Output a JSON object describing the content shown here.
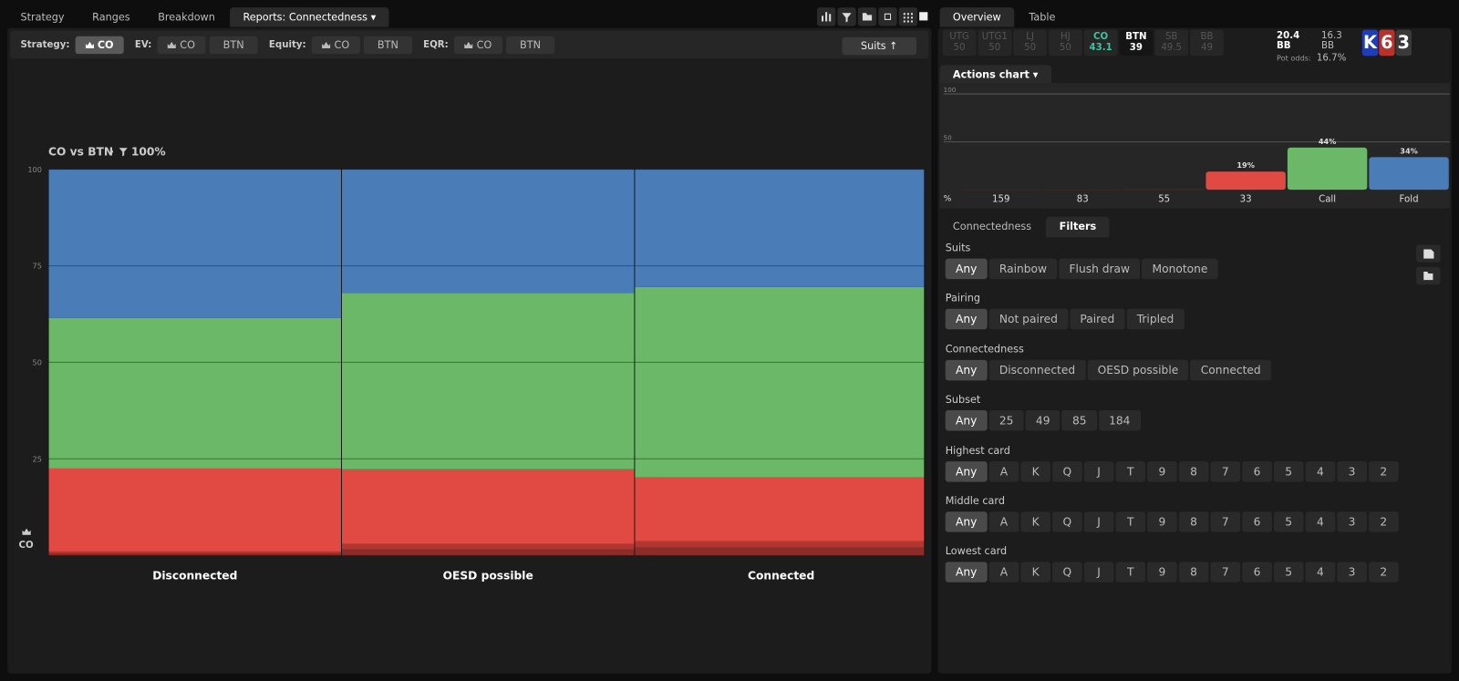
{
  "top_tabs": [
    "Strategy",
    "Ranges",
    "Breakdown",
    "Reports: Connectedness"
  ],
  "toolbar": {
    "groups": [
      {
        "label": "Strategy:",
        "buttons": [
          "CO"
        ]
      },
      {
        "label": "EV:",
        "buttons": [
          "CO",
          "BTN"
        ]
      },
      {
        "label": "Equity:",
        "buttons": [
          "CO",
          "BTN"
        ]
      },
      {
        "label": "EQR:",
        "buttons": [
          "CO",
          "BTN"
        ]
      }
    ],
    "sort_button": "Suits ↑"
  },
  "side_tabs": [
    "Overview",
    "Table"
  ],
  "positions": [
    {
      "name": "UTG",
      "value": 50
    },
    {
      "name": "UTG1",
      "value": 50
    },
    {
      "name": "LJ",
      "value": 50
    },
    {
      "name": "HJ",
      "value": 50
    },
    {
      "name": "CO",
      "value": 43.1
    },
    {
      "name": "BTN",
      "value": 39
    },
    {
      "name": "SB",
      "value": 49.5
    },
    {
      "name": "BB",
      "value": 49
    }
  ],
  "stacks": {
    "effective": "20.4 BB",
    "pot": "16.3 BB",
    "pot_odds_label": "Pot odds:",
    "pot_odds": "16.7%"
  },
  "board": [
    "K",
    "6",
    "3"
  ],
  "chart_data": [
    {
      "type": "bar",
      "stacked": true,
      "title": "CO vs BTN",
      "filter": "100%",
      "y_label": "CO",
      "categories": [
        "Disconnected",
        "OESD possible",
        "Connected"
      ],
      "series": [
        {
          "color": "#8a2c27",
          "values": [
            0.5,
            1.5,
            2
          ]
        },
        {
          "color": "#b0362f",
          "values": [
            0.5,
            1.5,
            1.7
          ]
        },
        {
          "color": "#e04a43",
          "values": [
            21.5,
            19.3,
            16.5
          ]
        },
        {
          "color": "#6bb868",
          "values": [
            39,
            45.7,
            49.3
          ]
        },
        {
          "color": "#4a7cb8",
          "values": [
            38.5,
            32,
            30.5
          ]
        }
      ],
      "ylim": [
        0,
        100
      ],
      "yticks": [
        25,
        50,
        75,
        100
      ],
      "grid": true
    },
    {
      "type": "bar",
      "title": "Actions chart",
      "y_label": "%",
      "categories": [
        "159",
        "83",
        "55",
        "33",
        "Call",
        "Fold"
      ],
      "values": [
        0.3,
        0.2,
        0.3,
        19,
        44,
        34
      ],
      "value_labels": [
        null,
        null,
        null,
        "19%",
        "44%",
        "34%"
      ],
      "colors": [
        "#8a2c27",
        "#9e312b",
        "#b0362f",
        "#e04a43",
        "#6bb868",
        "#4a7cb8"
      ],
      "ylim": [
        0,
        100
      ],
      "yticks": [
        50,
        100
      ],
      "grid": true
    }
  ],
  "filter_tabs": [
    "Connectedness",
    "Filters"
  ],
  "filters": [
    {
      "label": "Suits",
      "options": [
        "Any",
        "Rainbow",
        "Flush draw",
        "Monotone"
      ]
    },
    {
      "label": "Pairing",
      "options": [
        "Any",
        "Not paired",
        "Paired",
        "Tripled"
      ]
    },
    {
      "label": "Connectedness",
      "options": [
        "Any",
        "Disconnected",
        "OESD possible",
        "Connected"
      ]
    },
    {
      "label": "Subset",
      "options": [
        "Any",
        "25",
        "49",
        "85",
        "184"
      ]
    },
    {
      "label": "Highest card",
      "options": [
        "Any",
        "A",
        "K",
        "Q",
        "J",
        "T",
        "9",
        "8",
        "7",
        "6",
        "5",
        "4",
        "3",
        "2"
      ]
    },
    {
      "label": "Middle card",
      "options": [
        "Any",
        "A",
        "K",
        "Q",
        "J",
        "T",
        "9",
        "8",
        "7",
        "6",
        "5",
        "4",
        "3",
        "2"
      ]
    },
    {
      "label": "Lowest card",
      "options": [
        "Any",
        "A",
        "K",
        "Q",
        "J",
        "T",
        "9",
        "8",
        "7",
        "6",
        "5",
        "4",
        "3",
        "2"
      ]
    }
  ]
}
